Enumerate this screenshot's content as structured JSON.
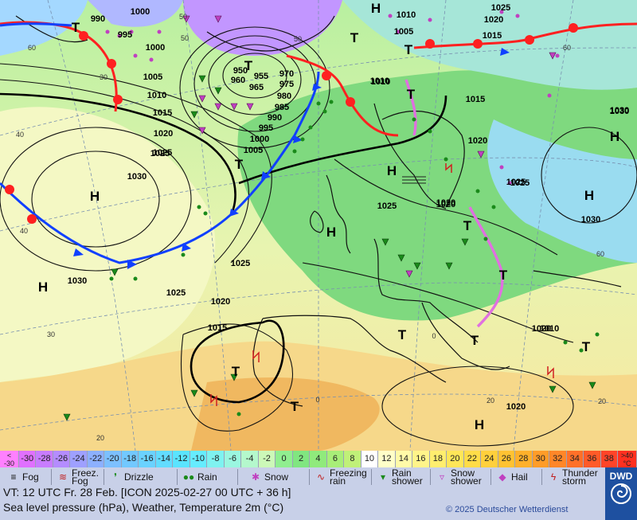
{
  "map": {
    "pressure_labels": [
      "990",
      "1000",
      "995",
      "1000",
      "1005",
      "1010",
      "1015",
      "1020",
      "1025",
      "1030",
      "1030",
      "1025",
      "1025",
      "1020",
      "1015",
      "1020",
      "1025",
      "1020",
      "1010",
      "1005",
      "1010",
      "1015",
      "1020",
      "1025",
      "1030",
      "1025",
      "1020",
      "1015",
      "1010",
      "1005",
      "1000",
      "995",
      "990",
      "985",
      "980",
      "975",
      "970",
      "965",
      "960",
      "955",
      "950",
      "1020",
      "1025",
      "1030",
      "1030",
      "1020",
      "1010",
      "1025"
    ],
    "pressure_label_colors": {
      "isobar": "#000000"
    },
    "high_label": "H",
    "low_label": "T",
    "temp_labels": [
      "40",
      "40",
      "30",
      "30",
      "20",
      "20",
      "20",
      "50",
      "60",
      "60",
      "60",
      "50",
      "50",
      "0",
      "0"
    ],
    "colors": {
      "warm_front": "#ff2020",
      "cold_front": "#1040ff",
      "occlusion": "#e070e0",
      "sea_cold": "#d9f0c0",
      "land_green": "#7cd67c",
      "warm_sand": "#f5e6a0",
      "purple_low": "#b070ff",
      "cyan": "#a0e0ff"
    }
  },
  "scale": {
    "lt_label": [
      "<",
      "-30"
    ],
    "gt_label": [
      ">40",
      "°C"
    ],
    "values": [
      "-30",
      "-28",
      "-26",
      "-24",
      "-22",
      "-20",
      "-18",
      "-16",
      "-14",
      "-12",
      "-10",
      "-8",
      "-6",
      "-4",
      "-2",
      "0",
      "2",
      "4",
      "6",
      "8",
      "10",
      "12",
      "14",
      "16",
      "18",
      "20",
      "22",
      "24",
      "26",
      "28",
      "30",
      "32",
      "34",
      "36",
      "38"
    ],
    "colors": [
      "#e070ff",
      "#c87cff",
      "#b48cff",
      "#9ea0ff",
      "#8cb0ff",
      "#7cc0ff",
      "#72c8ff",
      "#6ad2ff",
      "#62dcff",
      "#5ae4ff",
      "#66ecff",
      "#7ef2f0",
      "#9af6e0",
      "#b4f8cc",
      "#ccf8b8",
      "#90ee90",
      "#80e680",
      "#90ea7c",
      "#a8ee78",
      "#c0f078",
      "#ffffff",
      "#ffffc8",
      "#fffaa8",
      "#fff48a",
      "#ffee6e",
      "#ffe658",
      "#ffdc48",
      "#ffd03c",
      "#ffc232",
      "#ffb02a",
      "#ff9c28",
      "#ff8628",
      "#ff7028",
      "#ff5a28",
      "#ff4428"
    ]
  },
  "legend": {
    "fog": "Fog",
    "freez_fog": [
      "Freez.",
      "Fog"
    ],
    "drizzle": "Drizzle",
    "rain": "Rain",
    "snow": "Snow",
    "freezing_rain": [
      "Freezing",
      "rain"
    ],
    "rain_shower": [
      "Rain",
      "shower"
    ],
    "snow_shower": [
      "Snow",
      "shower"
    ],
    "hail": "Hail",
    "thunderstorm": [
      "Thunder",
      "storm"
    ]
  },
  "info": {
    "line1": "VT: 12 UTC Fr.  28 Feb. [ICON 2025-02-27  00 UTC + 36 h]",
    "line2": "Sea level pressure (hPa), Weather, Temperature 2m (°C)",
    "copyright": "© 2025 Deutscher Wetterdienst",
    "logo": "DWD"
  }
}
